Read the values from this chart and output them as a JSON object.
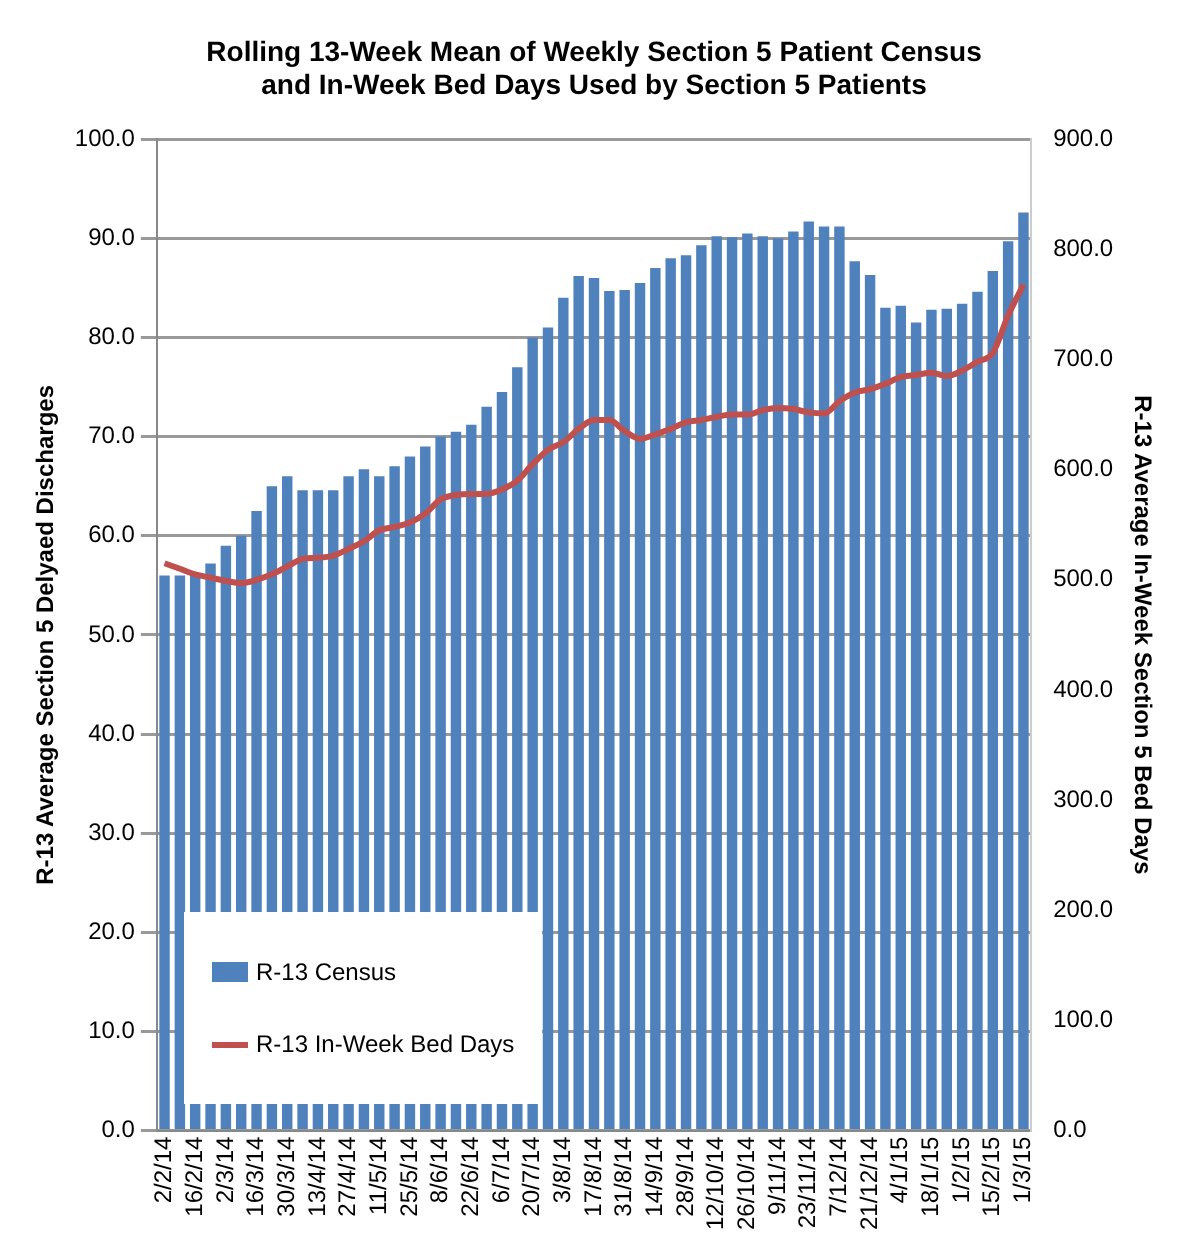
{
  "chart_data": {
    "type": "bar",
    "title": "Rolling 13-Week Mean of Weekly Section 5 Patient Census and In-Week Bed Days Used by Section 5 Patients",
    "ylabel": "R-13 Average Section 5 Delyaed Discharges",
    "y2label": "R-13 Average In-Week Section 5 Bed Days",
    "categories": [
      "2/2/14",
      null,
      "16/2/14",
      null,
      "2/3/14",
      null,
      "16/3/14",
      null,
      "30/3/14",
      null,
      "13/4/14",
      null,
      "27/4/14",
      null,
      "11/5/14",
      null,
      "25/5/14",
      null,
      "8/6/14",
      null,
      "22/6/14",
      null,
      "6/7/14",
      null,
      "20/7/14",
      null,
      "3/8/14",
      null,
      "17/8/14",
      null,
      "31/8/14",
      null,
      "14/9/14",
      null,
      "28/9/14",
      null,
      "12/10/14",
      null,
      "26/10/14",
      null,
      "9/11/14",
      null,
      "23/11/14",
      null,
      "7/12/14",
      null,
      "21/12/14",
      null,
      "4/1/15",
      null,
      "18/1/15",
      null,
      "1/2/15",
      null,
      "15/2/15",
      null,
      "1/3/15"
    ],
    "series": [
      {
        "name": "R-13 Census",
        "color": "#4f81bd",
        "values": [
          56,
          56,
          56,
          57.2,
          59,
          60,
          62.5,
          65,
          66,
          64.6,
          64.6,
          64.6,
          66,
          66.7,
          66,
          67,
          68,
          69,
          70,
          70.5,
          71.2,
          73,
          74.5,
          77,
          80,
          81,
          84,
          86.2,
          86,
          84.7,
          84.8,
          85.5,
          87,
          88,
          88.3,
          89.3,
          90.2,
          90.1,
          90.5,
          90.2,
          90,
          90.7,
          91.7,
          91.2,
          91.2,
          87.7,
          86.3,
          83,
          83.2,
          81.5,
          82.8,
          82.9,
          83.4,
          84.6,
          86.7,
          89.7,
          92.6
        ]
      },
      {
        "name": "R-13 In-Week Bed Days",
        "type": "line",
        "axis": "y2",
        "color": "#c0504d",
        "values": [
          515,
          510,
          505,
          502,
          499,
          497,
          500,
          505,
          512,
          519,
          520,
          522,
          528,
          535,
          545,
          548,
          552,
          560,
          573,
          577,
          578,
          578,
          582,
          590,
          605,
          618,
          625,
          637,
          645,
          645,
          635,
          628,
          632,
          637,
          643,
          645,
          648,
          650,
          650,
          654,
          656,
          655,
          652,
          651,
          662,
          670,
          673,
          678,
          684,
          686,
          688,
          685,
          690,
          698,
          706,
          740,
          768
        ]
      }
    ],
    "ylim": [
      0,
      100
    ],
    "yticks": [
      {
        "value": 0,
        "label": "0.0"
      },
      {
        "value": 10,
        "label": "10.0"
      },
      {
        "value": 20,
        "label": "20.0"
      },
      {
        "value": 30,
        "label": "30.0"
      },
      {
        "value": 40,
        "label": "40.0"
      },
      {
        "value": 50,
        "label": "50.0"
      },
      {
        "value": 60,
        "label": "60.0"
      },
      {
        "value": 70,
        "label": "70.0"
      },
      {
        "value": 80,
        "label": "80.0"
      },
      {
        "value": 90,
        "label": "90.0"
      },
      {
        "value": 100,
        "label": "100.0"
      }
    ],
    "y2lim": [
      0,
      900
    ],
    "y2ticks": [
      {
        "value": 0,
        "label": "0.0"
      },
      {
        "value": 100,
        "label": "100.0"
      },
      {
        "value": 200,
        "label": "200.0"
      },
      {
        "value": 300,
        "label": "300.0"
      },
      {
        "value": 400,
        "label": "400.0"
      },
      {
        "value": 500,
        "label": "500.0"
      },
      {
        "value": 600,
        "label": "600.0"
      },
      {
        "value": 700,
        "label": "700.0"
      },
      {
        "value": 800,
        "label": "800.0"
      },
      {
        "value": 900,
        "label": "900.0"
      }
    ],
    "grid": "y",
    "legend": "bottom left",
    "marker": "none",
    "line_style": "solid"
  }
}
